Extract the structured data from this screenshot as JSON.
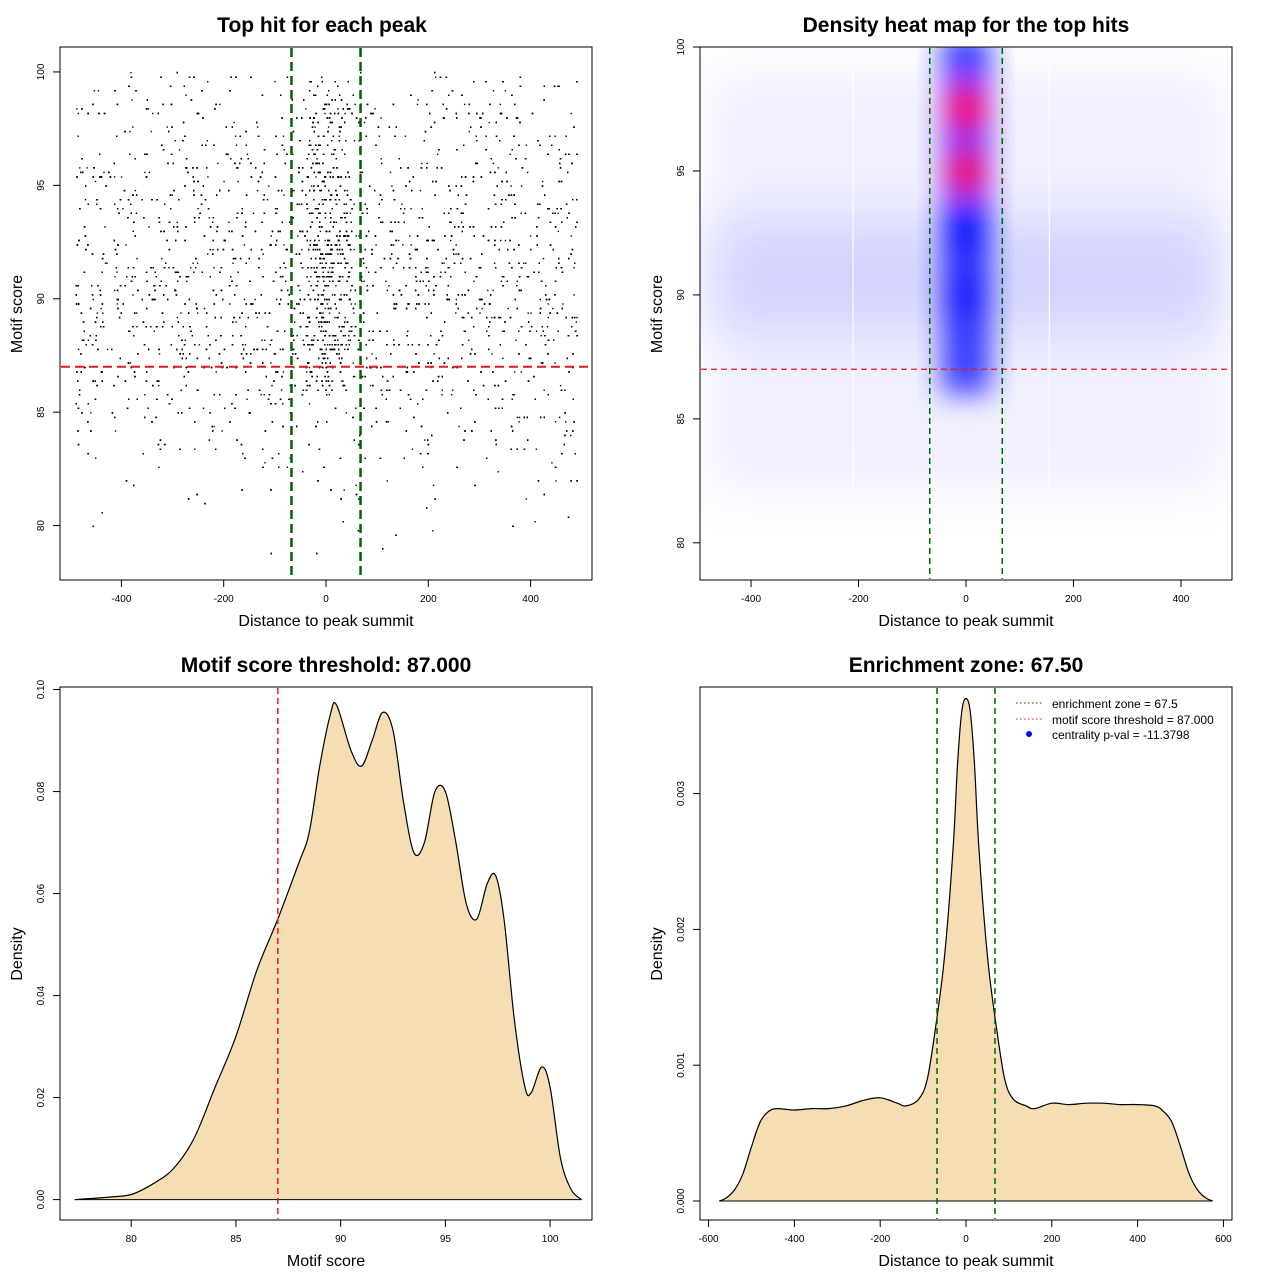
{
  "figure": {
    "panels_layout": "2x2 grid",
    "colors": {
      "points": "#000000",
      "threshold_line": "#e41a1c",
      "zone_line": "#006400",
      "density_fill": "#f5deb3",
      "heat_low": "#ffffff",
      "heat_mid": "#0000ff",
      "heat_high": "#ff0000"
    }
  },
  "chart_data": [
    {
      "type": "scatter",
      "title": "Top hit for each peak",
      "xlabel": "Distance to peak summit",
      "ylabel": "Motif score",
      "xlim": [
        -520,
        520
      ],
      "ylim": [
        77.6,
        101.1
      ],
      "xticks": [
        -400,
        -200,
        0,
        200,
        400
      ],
      "yticks": [
        80,
        85,
        90,
        95,
        100
      ],
      "hline": 87,
      "vlines": [
        -67.5,
        67.5
      ],
      "point_distribution": {
        "x_range": [
          -490,
          490
        ],
        "score_range": [
          78.5,
          100
        ],
        "central_window": [
          -67.5,
          67.5
        ],
        "score_density": [
          [
            78,
            0.01
          ],
          [
            80,
            0.03
          ],
          [
            82,
            0.1
          ],
          [
            84,
            0.25
          ],
          [
            86,
            0.5
          ],
          [
            88,
            0.9
          ],
          [
            90,
            0.96
          ],
          [
            92,
            0.95
          ],
          [
            94,
            0.85
          ],
          [
            96,
            0.6
          ],
          [
            98,
            0.55
          ],
          [
            100,
            0.2
          ]
        ]
      },
      "note_count_approx": 9000
    },
    {
      "type": "heatmap",
      "title": "Density heat map for the top hits",
      "xlabel": "Distance to peak summit",
      "ylabel": "Motif score",
      "xlim": [
        -495,
        495
      ],
      "ylim": [
        78.5,
        100
      ],
      "xticks": [
        -400,
        -200,
        0,
        200,
        400
      ],
      "yticks": [
        80,
        85,
        90,
        95,
        100
      ],
      "hline": 87,
      "vlines": [
        -67.5,
        67.5
      ],
      "hotspots": [
        {
          "x": 0,
          "y": 97.5,
          "level": 1.0
        },
        {
          "x": 0,
          "y": 95.0,
          "level": 0.95
        },
        {
          "x": 0,
          "y": 92.5,
          "level": 0.7
        },
        {
          "x": 0,
          "y": 90.0,
          "level": 0.55
        }
      ],
      "color_scale": [
        "#ffffff",
        "#0000ff",
        "#ff0000"
      ]
    },
    {
      "type": "area",
      "title": "Motif score threshold: 87.000",
      "xlabel": "Motif score",
      "ylabel": "Density",
      "xlim": [
        76.6,
        102.0
      ],
      "ylim": [
        -0.004,
        0.1005
      ],
      "xticks": [
        80,
        85,
        90,
        95,
        100
      ],
      "yticks": [
        0.0,
        0.02,
        0.04,
        0.06,
        0.08,
        0.1
      ],
      "ytick_labels": [
        "0.00",
        "0.02",
        "0.04",
        "0.06",
        "0.08",
        "0.10"
      ],
      "vline": 87,
      "x": [
        77.3,
        79,
        80,
        81,
        82,
        83,
        84,
        85,
        86,
        87,
        88,
        88.5,
        89,
        89.5,
        89.8,
        90.5,
        91,
        91.5,
        92,
        92.5,
        93,
        93.5,
        94,
        94.5,
        95,
        95.5,
        96,
        96.5,
        97,
        97.4,
        97.8,
        98.3,
        98.8,
        99.1,
        99.6,
        100,
        100.5,
        101,
        101.5
      ],
      "y": [
        0.0,
        0.0005,
        0.001,
        0.003,
        0.006,
        0.012,
        0.022,
        0.032,
        0.045,
        0.055,
        0.066,
        0.072,
        0.085,
        0.095,
        0.097,
        0.088,
        0.085,
        0.09,
        0.0955,
        0.092,
        0.078,
        0.068,
        0.07,
        0.08,
        0.08,
        0.07,
        0.058,
        0.055,
        0.062,
        0.0635,
        0.055,
        0.035,
        0.022,
        0.021,
        0.026,
        0.022,
        0.008,
        0.002,
        0.0
      ]
    },
    {
      "type": "area",
      "title": "Enrichment zone: 67.50",
      "xlabel": "Distance to peak summit",
      "ylabel": "Density",
      "xlim": [
        -620,
        620
      ],
      "ylim": [
        -0.00014,
        0.003785
      ],
      "xticks": [
        -600,
        -400,
        -200,
        0,
        200,
        400,
        600
      ],
      "yticks": [
        0.0,
        0.001,
        0.002,
        0.003
      ],
      "ytick_labels": [
        "0.000",
        "0.001",
        "0.002",
        "0.003"
      ],
      "vlines": [
        -67.5,
        67.5
      ],
      "x": [
        -575,
        -560,
        -540,
        -520,
        -500,
        -480,
        -460,
        -440,
        -400,
        -360,
        -320,
        -280,
        -240,
        -200,
        -160,
        -140,
        -110,
        -90,
        -70,
        -50,
        -30,
        -20,
        -10,
        0,
        10,
        20,
        30,
        50,
        70,
        90,
        110,
        140,
        160,
        200,
        240,
        280,
        320,
        360,
        400,
        440,
        460,
        480,
        500,
        520,
        540,
        560,
        575
      ],
      "y": [
        0.0,
        2e-05,
        8e-05,
        0.0002,
        0.0004,
        0.00058,
        0.00066,
        0.00068,
        0.00067,
        0.00068,
        0.00068,
        0.0007,
        0.00074,
        0.00076,
        0.00072,
        0.0007,
        0.00075,
        0.0009,
        0.0013,
        0.0018,
        0.0026,
        0.0032,
        0.0036,
        0.0037,
        0.0036,
        0.0032,
        0.0026,
        0.0018,
        0.0013,
        0.0009,
        0.00075,
        0.0007,
        0.00068,
        0.00072,
        0.00071,
        0.00072,
        0.00072,
        0.00071,
        0.00071,
        0.0007,
        0.00066,
        0.00058,
        0.0004,
        0.0002,
        8e-05,
        2e-05,
        0.0
      ],
      "legend": {
        "placement": "top-right",
        "entries": [
          {
            "label": "enrichment zone = 67.5",
            "color": "#006400",
            "style": "dotted-line"
          },
          {
            "label": "motif score threshold = 87.000",
            "color": "#e41a1c",
            "style": "dotted-line"
          },
          {
            "label": "centrality p-val = -11.3798",
            "color": "#0000ff",
            "style": "point"
          }
        ]
      }
    }
  ]
}
